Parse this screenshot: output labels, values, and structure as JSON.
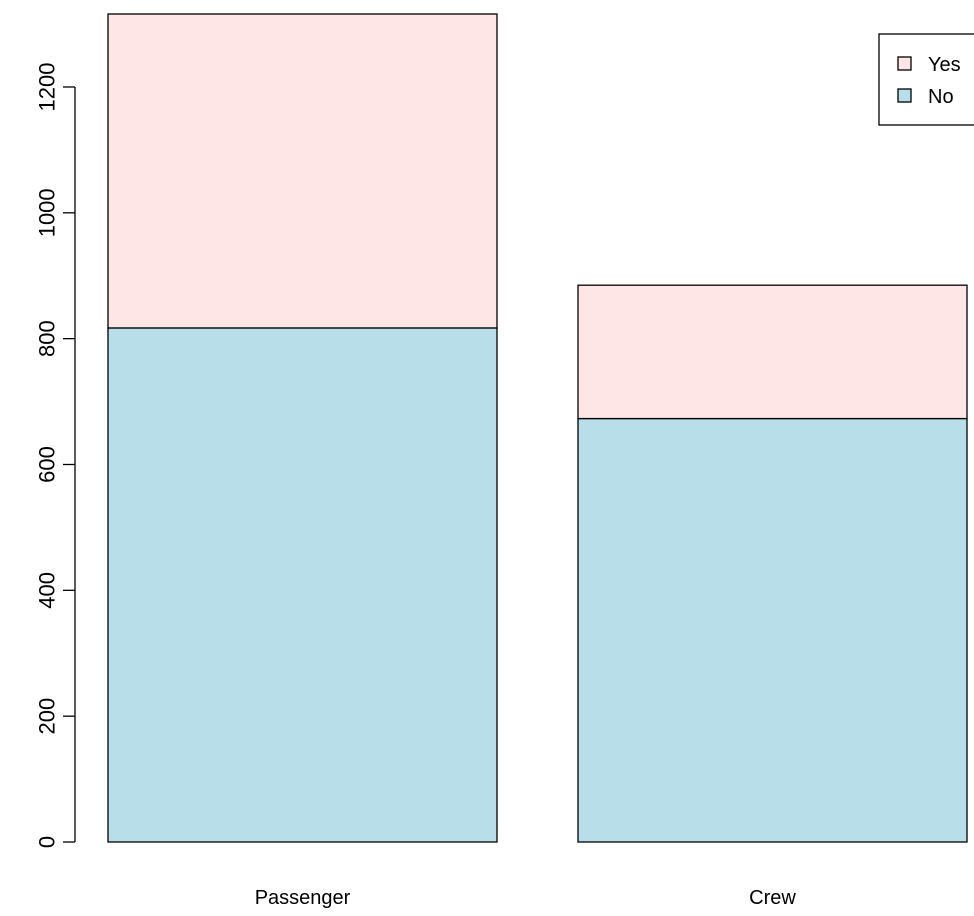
{
  "chart_data": {
    "type": "bar",
    "stacked": true,
    "categories": [
      "Passenger",
      "Crew"
    ],
    "series": [
      {
        "name": "No",
        "values": [
          817,
          673
        ],
        "color": "#B8DEEA"
      },
      {
        "name": "Yes",
        "values": [
          499,
          212
        ],
        "color": "#FFE6E6"
      }
    ],
    "legend": {
      "position": "top-right",
      "entries": [
        "Yes",
        "No"
      ]
    },
    "y_ticks": [
      "0",
      "200",
      "400",
      "600",
      "800",
      "1000",
      "1200"
    ],
    "ylim": [
      0,
      1316
    ],
    "xlabel": "",
    "ylabel": "",
    "title": "",
    "grid": false
  }
}
